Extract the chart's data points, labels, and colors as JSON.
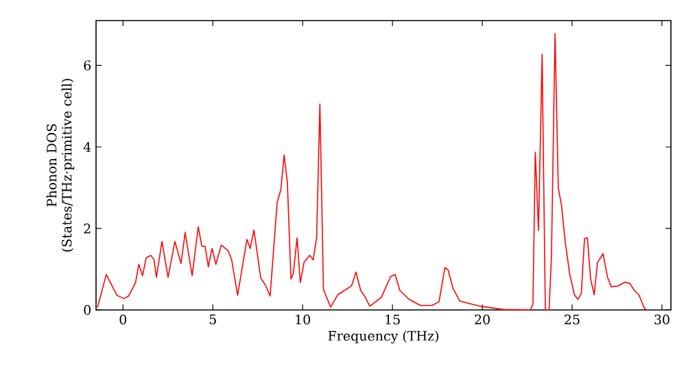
{
  "chart_data": {
    "type": "line",
    "xlabel": "Frequency (THz)",
    "ylabel": "Phonon DOS (States/THz·primitive cell)",
    "xlim": [
      -1.5,
      30.5
    ],
    "ylim": [
      0,
      7.1
    ],
    "xticks": [
      0,
      5,
      10,
      15,
      20,
      25,
      30
    ],
    "yticks": [
      0,
      2,
      4,
      6
    ],
    "grid": false,
    "marker": "none",
    "line_style": "solid",
    "series": [
      {
        "color": "#ff0000",
        "x": [
          -1.42,
          -0.93,
          -0.34,
          0.05,
          0.31,
          0.7,
          0.88,
          1.09,
          1.29,
          1.55,
          1.73,
          1.86,
          2.17,
          2.51,
          2.89,
          3.23,
          3.46,
          3.85,
          4.19,
          4.39,
          4.57,
          4.75,
          4.96,
          5.17,
          5.47,
          5.86,
          6.05,
          6.38,
          6.9,
          7.08,
          7.29,
          7.67,
          7.93,
          8.19,
          8.58,
          8.79,
          8.97,
          9.15,
          9.35,
          9.48,
          9.69,
          9.87,
          10.08,
          10.39,
          10.59,
          10.78,
          10.96,
          11.16,
          11.56,
          11.95,
          12.72,
          12.97,
          13.23,
          13.49,
          13.74,
          14.38,
          14.9,
          15.15,
          15.41,
          15.92,
          16.56,
          17.2,
          17.59,
          17.92,
          18.1,
          18.36,
          18.74,
          19.9,
          21.18,
          22.69,
          22.82,
          22.95,
          23.13,
          23.33,
          23.51,
          23.72,
          23.85,
          24.05,
          24.23,
          24.41,
          24.62,
          24.87,
          25.13,
          25.33,
          25.51,
          25.69,
          25.85,
          26.03,
          26.23,
          26.41,
          26.72,
          26.97,
          27.18,
          27.56,
          27.95,
          28.21,
          28.46,
          28.72,
          29.03,
          29.18
        ],
        "values": [
          0.06,
          0.87,
          0.36,
          0.28,
          0.34,
          0.67,
          1.12,
          0.84,
          1.28,
          1.34,
          1.23,
          0.8,
          1.68,
          0.8,
          1.68,
          1.14,
          1.9,
          0.84,
          2.04,
          1.56,
          1.56,
          1.06,
          1.51,
          1.12,
          1.59,
          1.45,
          1.23,
          0.36,
          1.73,
          1.51,
          1.96,
          0.78,
          0.61,
          0.34,
          2.63,
          2.96,
          3.8,
          3.13,
          0.76,
          0.89,
          1.77,
          0.67,
          1.17,
          1.34,
          1.23,
          1.79,
          5.05,
          0.5,
          0.07,
          0.37,
          0.59,
          0.93,
          0.48,
          0.31,
          0.09,
          0.31,
          0.82,
          0.87,
          0.48,
          0.26,
          0.11,
          0.11,
          0.2,
          1.04,
          0.98,
          0.54,
          0.22,
          0.09,
          0.01,
          0,
          0.15,
          3.87,
          1.95,
          6.27,
          0,
          0,
          1.32,
          6.78,
          3.0,
          2.56,
          1.66,
          0.87,
          0.37,
          0.26,
          0.4,
          1.75,
          1.77,
          0.76,
          0.37,
          1.16,
          1.38,
          0.8,
          0.57,
          0.59,
          0.68,
          0.65,
          0.48,
          0.37,
          0.03,
          0
        ]
      }
    ]
  }
}
